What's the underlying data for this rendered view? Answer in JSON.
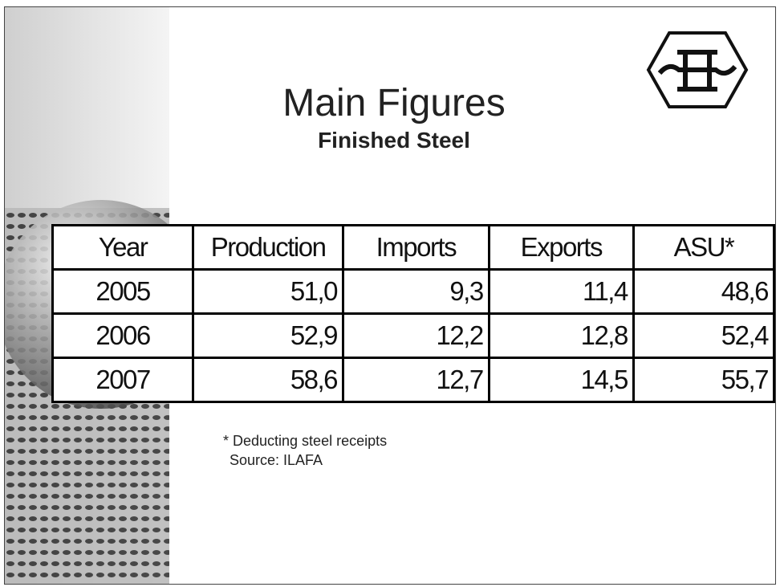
{
  "header": {
    "title": "Main Figures",
    "subtitle": "Finished Steel"
  },
  "table": {
    "columns": [
      "Year",
      "Production",
      "Imports",
      "Exports",
      "ASU*"
    ],
    "rows": [
      [
        "2005",
        "51,0",
        "9,3",
        "11,4",
        "48,6"
      ],
      [
        "2006",
        "52,9",
        "12,2",
        "12,8",
        "52,4"
      ],
      [
        "2007",
        "58,6",
        "12,7",
        "14,5",
        "55,7"
      ]
    ]
  },
  "notes": [
    "* Deducting steel receipts",
    "Source: ILAFA"
  ]
}
